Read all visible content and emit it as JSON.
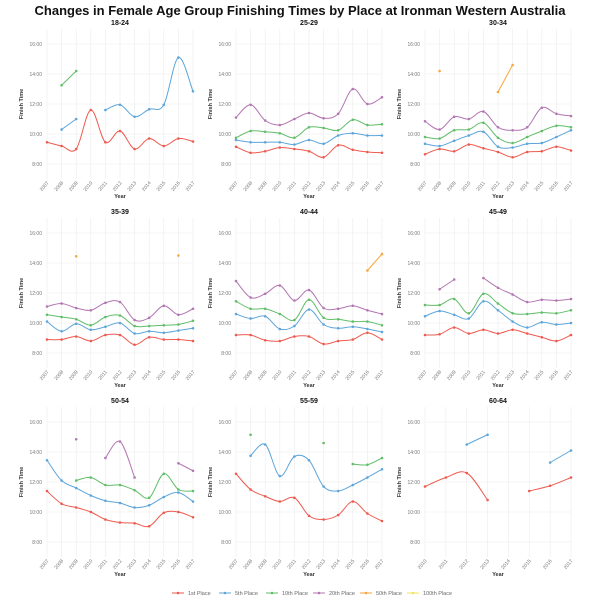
{
  "chart_data": {
    "type": "line",
    "title": "Changes in Female Age Group Finishing Times by Place at Ironman Western Australia",
    "xlabel": "Year",
    "ylabel": "Finish Time",
    "ylim": [
      7,
      17
    ],
    "yticks": [
      8,
      10,
      12,
      14,
      16
    ],
    "ytick_labels": [
      "8:00",
      "10:00",
      "12:00",
      "14:00",
      "16:00"
    ],
    "grid": true,
    "legend_position": "bottom",
    "series_names": [
      "1st Place",
      "5th Place",
      "10th Place",
      "20th Place",
      "50th Place",
      "100th Place"
    ],
    "series_colors": [
      "#ee5a4f",
      "#5da5da",
      "#60bd68",
      "#b276b2",
      "#faa43a",
      "#f1e65a"
    ],
    "panels": [
      {
        "title": "18-24",
        "x": [
          "2007",
          "2008",
          "2009",
          "2010",
          "2011",
          "2012",
          "2013",
          "2014",
          "2015",
          "2016",
          "2017"
        ],
        "series": [
          [
            9.45,
            9.2,
            9.0,
            11.6,
            9.45,
            10.2,
            9.0,
            9.7,
            9.2,
            9.7,
            9.5
          ],
          [
            null,
            10.3,
            11.0,
            null,
            11.6,
            11.95,
            11.15,
            11.65,
            11.95,
            15.1,
            12.85
          ],
          [
            null,
            13.25,
            14.2,
            null,
            null,
            null,
            null,
            null,
            null,
            null,
            null
          ],
          [],
          [],
          []
        ]
      },
      {
        "title": "25-29",
        "x": [
          "2007",
          "2008",
          "2009",
          "2010",
          "2011",
          "2012",
          "2013",
          "2014",
          "2015",
          "2016",
          "2017"
        ],
        "series": [
          [
            9.15,
            8.75,
            8.85,
            9.1,
            9.0,
            8.85,
            8.45,
            9.25,
            8.95,
            8.8,
            8.75
          ],
          [
            9.6,
            9.45,
            9.45,
            9.45,
            9.3,
            9.6,
            9.35,
            9.9,
            10.05,
            9.9,
            9.9
          ],
          [
            9.75,
            10.2,
            10.15,
            10.05,
            9.75,
            10.45,
            10.4,
            10.25,
            10.95,
            10.6,
            10.65
          ],
          [
            11.1,
            11.95,
            10.9,
            10.6,
            11.0,
            11.4,
            11.05,
            11.35,
            13.0,
            12.0,
            12.45
          ],
          [],
          []
        ]
      },
      {
        "title": "30-34",
        "x": [
          "2007",
          "2008",
          "2009",
          "2010",
          "2011",
          "2012",
          "2013",
          "2014",
          "2015",
          "2016",
          "2017"
        ],
        "series": [
          [
            8.65,
            9.0,
            8.85,
            9.3,
            9.05,
            8.8,
            8.45,
            8.8,
            8.85,
            9.15,
            8.9
          ],
          [
            9.35,
            9.2,
            9.55,
            9.9,
            10.15,
            9.15,
            9.1,
            9.35,
            9.4,
            9.8,
            10.25
          ],
          [
            9.8,
            9.7,
            10.25,
            10.3,
            10.75,
            9.75,
            9.4,
            9.8,
            10.2,
            10.55,
            10.45
          ],
          [
            10.85,
            10.3,
            11.15,
            11.0,
            11.5,
            10.45,
            10.25,
            10.45,
            11.75,
            11.35,
            11.2
          ],
          [
            null,
            14.2,
            null,
            null,
            null,
            12.8,
            14.6,
            null,
            null,
            null,
            null
          ],
          []
        ]
      },
      {
        "title": "35-39",
        "x": [
          "2007",
          "2008",
          "2009",
          "2010",
          "2011",
          "2012",
          "2013",
          "2014",
          "2015",
          "2016",
          "2017"
        ],
        "series": [
          [
            8.9,
            8.9,
            9.1,
            8.8,
            9.2,
            9.2,
            8.55,
            9.05,
            8.9,
            8.9,
            8.8
          ],
          [
            10.1,
            9.45,
            9.95,
            9.55,
            9.75,
            10.0,
            9.3,
            9.45,
            9.35,
            9.5,
            9.65
          ],
          [
            10.55,
            10.4,
            10.25,
            9.85,
            10.4,
            10.5,
            9.8,
            9.8,
            9.85,
            9.9,
            10.15
          ],
          [
            11.1,
            11.3,
            11.0,
            10.85,
            11.35,
            11.4,
            10.2,
            10.35,
            11.15,
            10.55,
            10.95
          ],
          [
            null,
            null,
            14.45,
            null,
            null,
            null,
            null,
            null,
            null,
            14.5,
            null
          ],
          []
        ]
      },
      {
        "title": "40-44",
        "x": [
          "2007",
          "2008",
          "2009",
          "2010",
          "2011",
          "2012",
          "2013",
          "2014",
          "2015",
          "2016",
          "2017"
        ],
        "series": [
          [
            9.2,
            9.2,
            8.85,
            8.8,
            9.1,
            9.1,
            8.6,
            8.8,
            8.9,
            9.35,
            8.9
          ],
          [
            10.6,
            10.3,
            10.45,
            9.6,
            9.8,
            10.9,
            9.9,
            9.65,
            9.75,
            9.6,
            9.4
          ],
          [
            11.45,
            10.95,
            10.95,
            10.6,
            10.2,
            11.55,
            10.35,
            10.25,
            10.1,
            10.1,
            9.85
          ],
          [
            12.8,
            11.7,
            11.95,
            12.5,
            11.5,
            12.2,
            11.0,
            10.95,
            11.15,
            10.85,
            10.6
          ],
          [
            null,
            null,
            null,
            null,
            null,
            null,
            null,
            null,
            null,
            13.5,
            14.6
          ],
          []
        ]
      },
      {
        "title": "45-49",
        "x": [
          "2007",
          "2008",
          "2009",
          "2010",
          "2011",
          "2012",
          "2013",
          "2014",
          "2015",
          "2016",
          "2017"
        ],
        "series": [
          [
            9.2,
            9.25,
            9.7,
            9.3,
            9.55,
            9.3,
            9.55,
            9.3,
            9.05,
            8.8,
            9.2
          ],
          [
            10.45,
            10.8,
            10.55,
            10.3,
            11.45,
            10.85,
            10.1,
            9.7,
            10.05,
            9.9,
            10.0
          ],
          [
            11.2,
            11.2,
            11.6,
            10.65,
            11.95,
            11.3,
            10.65,
            10.6,
            10.7,
            10.65,
            10.85
          ],
          [
            null,
            12.25,
            12.9,
            null,
            13.0,
            12.35,
            11.9,
            11.4,
            11.55,
            11.5,
            11.6
          ],
          [],
          []
        ]
      },
      {
        "title": "50-54",
        "x": [
          "2007",
          "2008",
          "2009",
          "2010",
          "2011",
          "2012",
          "2013",
          "2014",
          "2015",
          "2016",
          "2017"
        ],
        "series": [
          [
            11.4,
            10.55,
            10.3,
            10.0,
            9.5,
            9.3,
            9.25,
            9.05,
            9.95,
            10.0,
            9.65
          ],
          [
            13.45,
            12.1,
            11.6,
            11.1,
            10.75,
            10.6,
            10.3,
            10.45,
            11.0,
            11.3,
            10.7
          ],
          [
            null,
            null,
            12.1,
            12.3,
            11.8,
            11.8,
            11.45,
            10.95,
            12.55,
            11.5,
            11.4
          ],
          [
            null,
            null,
            14.85,
            null,
            13.6,
            14.7,
            12.3,
            null,
            null,
            13.25,
            12.75
          ],
          [],
          []
        ]
      },
      {
        "title": "55-59",
        "x": [
          "2007",
          "2008",
          "2009",
          "2010",
          "2011",
          "2012",
          "2013",
          "2014",
          "2015",
          "2016",
          "2017"
        ],
        "series": [
          [
            12.55,
            11.5,
            11.05,
            10.7,
            10.95,
            9.75,
            9.5,
            9.8,
            10.7,
            9.9,
            9.4
          ],
          [
            null,
            13.75,
            14.5,
            12.4,
            13.7,
            13.45,
            11.7,
            11.4,
            11.8,
            12.3,
            12.85
          ],
          [
            null,
            15.15,
            null,
            null,
            null,
            null,
            14.6,
            null,
            13.2,
            13.15,
            13.6
          ],
          [],
          [],
          []
        ]
      },
      {
        "title": "60-64",
        "x": [
          "2010",
          "2011",
          "2012",
          "2013",
          "2014",
          "2015",
          "2016",
          "2017"
        ],
        "series": [
          [
            11.7,
            12.3,
            12.6,
            10.8,
            null,
            11.4,
            11.75,
            12.3
          ],
          [
            null,
            null,
            14.5,
            15.15,
            null,
            null,
            13.3,
            14.1
          ],
          [],
          [],
          [],
          []
        ]
      }
    ]
  }
}
